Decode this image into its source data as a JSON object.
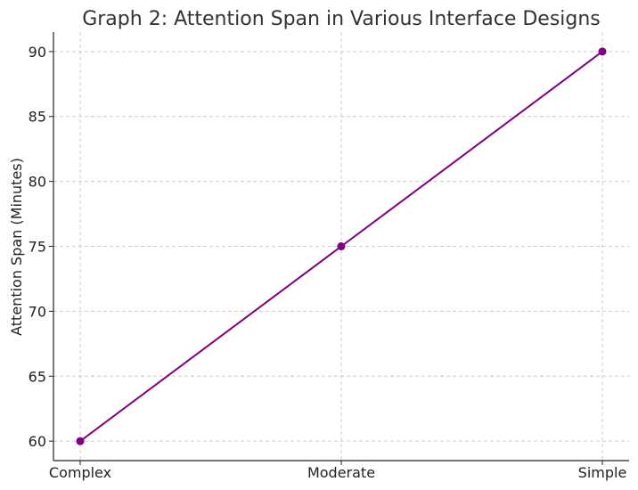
{
  "chart_data": {
    "type": "line",
    "title": "Graph 2: Attention Span in Various Interface Designs",
    "xlabel": "",
    "ylabel": "Attention Span (Minutes)",
    "categories": [
      "Complex",
      "Moderate",
      "Simple"
    ],
    "series": [
      {
        "values": [
          60,
          75,
          90
        ],
        "color": "#800080",
        "marker": "circle"
      }
    ],
    "ylim": [
      58.5,
      91.5
    ],
    "yticks": [
      60,
      65,
      70,
      75,
      80,
      85,
      90
    ],
    "grid": true,
    "legend": "none"
  }
}
